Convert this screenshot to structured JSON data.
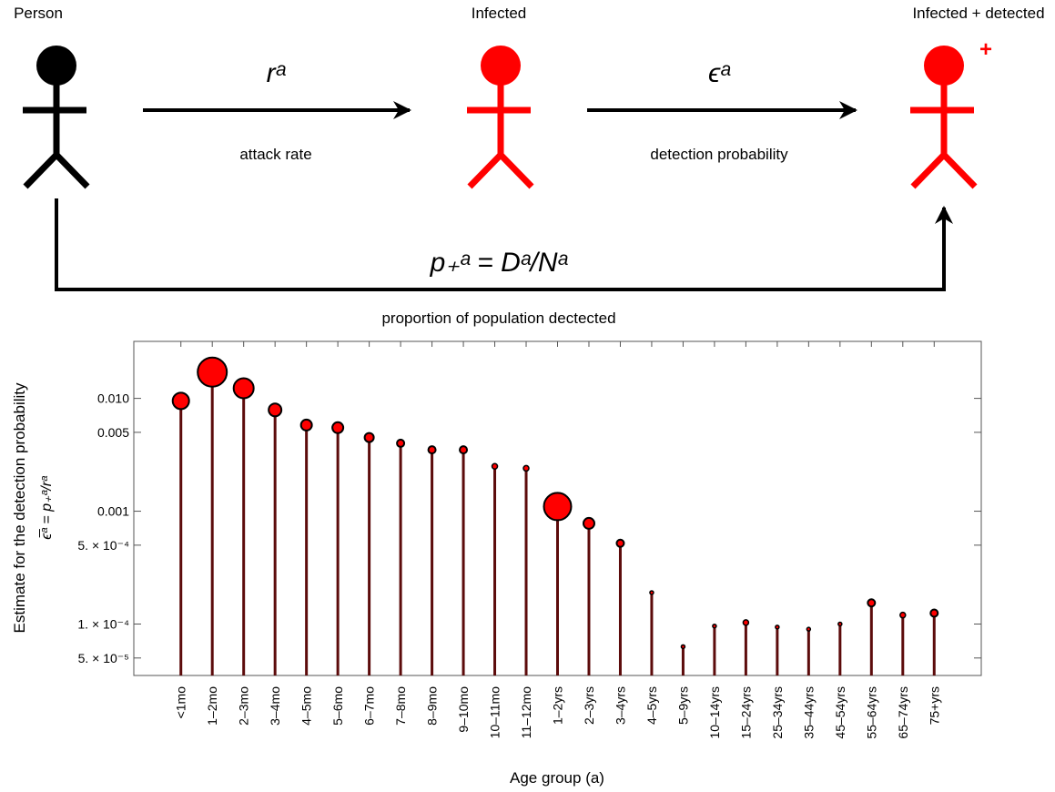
{
  "diagram": {
    "person": "Person",
    "infected": "Infected",
    "detected": "Infected + detected",
    "plus": "+",
    "rate_symbol": "rᵃ",
    "rate_label": "attack rate",
    "detect_symbol": "ϵᵃ",
    "detect_label": "detection probability",
    "proportion_formula": "p₊ᵃ = Dᵃ/Nᵃ",
    "proportion_label": "proportion of population dectected"
  },
  "chart_data": {
    "type": "stem",
    "y_label": "Estimate for the detection probability",
    "y_label_formula": "ϵ̅ᵃ = p₊ᵃ/rᵃ",
    "x_label": "Age group (a)",
    "log_scale": true,
    "stem_color": "#5c0b0b",
    "marker_color": "#ff0000",
    "categories": [
      "<1mo",
      "1–2mo",
      "2–3mo",
      "3–4mo",
      "4–5mo",
      "5–6mo",
      "6–7mo",
      "7–8mo",
      "8–9mo",
      "9–10mo",
      "10–11mo",
      "11–12mo",
      "1–2yrs",
      "2–3yrs",
      "3–4yrs",
      "4–5yrs",
      "5–9yrs",
      "10–14yrs",
      "15–24yrs",
      "25–34yrs",
      "35–44yrs",
      "45–54yrs",
      "55–64yrs",
      "65–74yrs",
      "75+yrs"
    ],
    "values": [
      0.0095,
      0.0171,
      0.0123,
      0.0079,
      0.0058,
      0.0055,
      0.0045,
      0.004,
      0.0035,
      0.0035,
      0.0025,
      0.0024,
      0.0011,
      0.00078,
      0.00052,
      0.00019,
      6.3e-05,
      9.6e-05,
      0.000103,
      9.4e-05,
      9e-05,
      0.0001,
      0.000154,
      0.00012,
      0.000125
    ],
    "sizes": [
      9,
      16,
      11,
      7,
      6,
      6,
      5,
      4,
      4,
      4,
      3,
      3,
      15,
      6,
      4,
      2,
      2,
      2,
      3,
      2,
      2,
      2,
      4,
      3,
      4
    ],
    "ylim": [
      3.5e-05,
      0.032
    ],
    "yticks": [
      {
        "value": 0.01,
        "label": "0.010"
      },
      {
        "value": 0.005,
        "label": "0.005"
      },
      {
        "value": 0.001,
        "label": "0.001"
      },
      {
        "value": 0.0005,
        "label": "5. × 10⁻⁴"
      },
      {
        "value": 0.0001,
        "label": "1. × 10⁻⁴"
      },
      {
        "value": 5e-05,
        "label": "5. × 10⁻⁵"
      }
    ]
  }
}
